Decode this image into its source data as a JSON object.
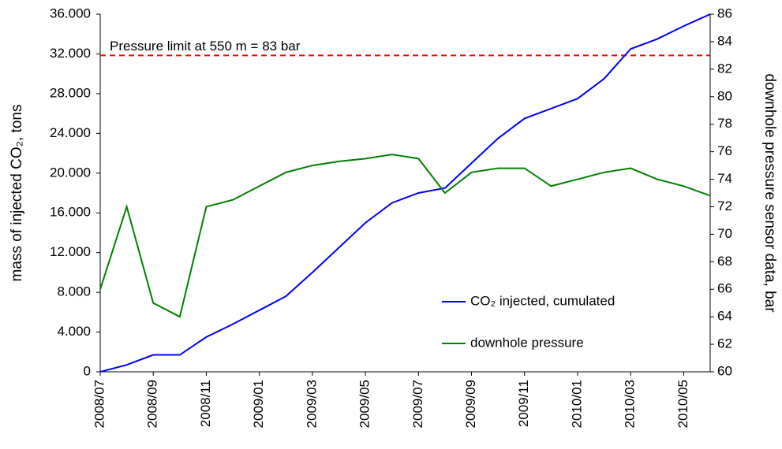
{
  "chart_data": {
    "type": "line",
    "ylabel": "mass of injected CO₂, tons",
    "y2label": "downhole pressure sensor data, bar",
    "x": [
      "2008/07",
      "2008/08",
      "2008/09",
      "2008/10",
      "2008/11",
      "2008/12",
      "2009/01",
      "2009/02",
      "2009/03",
      "2009/04",
      "2009/05",
      "2009/06",
      "2009/07",
      "2009/08",
      "2009/09",
      "2009/10",
      "2009/11",
      "2009/12",
      "2010/01",
      "2010/02",
      "2010/03",
      "2010/04",
      "2010/05",
      "2010/06"
    ],
    "series": [
      {
        "name": "CO₂ injected, cumulated",
        "color": "#0000ff",
        "axis": "y",
        "values": [
          0,
          700,
          1700,
          1700,
          3500,
          4800,
          6200,
          7600,
          10000,
          12500,
          15000,
          17000,
          18000,
          18500,
          21000,
          23500,
          25500,
          26500,
          27500,
          29500,
          32500,
          33500,
          34800,
          36000
        ]
      },
      {
        "name": "downhole pressure",
        "color": "#008000",
        "axis": "y2",
        "values": [
          66,
          72,
          65,
          64,
          72,
          72.5,
          73.5,
          74.5,
          75,
          75.3,
          75.5,
          75.8,
          75.5,
          73,
          74.5,
          74.8,
          74.8,
          73.5,
          74,
          74.5,
          74.8,
          74,
          73.5,
          72.8
        ]
      }
    ],
    "reference_lines": [
      {
        "value": 83,
        "axis": "y2",
        "label": "Pressure limit at 550 m = 83 bar",
        "color": "#ff0000"
      }
    ],
    "xlim": [
      "2008/07",
      "2010/06"
    ],
    "xticks": [
      "2008/07",
      "2008/09",
      "2008/11",
      "2009/01",
      "2009/03",
      "2009/05",
      "2009/07",
      "2009/09",
      "2009/11",
      "2010/01",
      "2010/03",
      "2010/05"
    ],
    "ylim": [
      0,
      36000
    ],
    "yticks": [
      {
        "value": 0,
        "label": "0"
      },
      {
        "value": 4000,
        "label": "4.000"
      },
      {
        "value": 8000,
        "label": "8.000"
      },
      {
        "value": 12000,
        "label": "12.000"
      },
      {
        "value": 16000,
        "label": "16.000"
      },
      {
        "value": 20000,
        "label": "20.000"
      },
      {
        "value": 24000,
        "label": "24.000"
      },
      {
        "value": 28000,
        "label": "28.000"
      },
      {
        "value": 32000,
        "label": "32.000"
      },
      {
        "value": 36000,
        "label": "36.000"
      }
    ],
    "y2lim": [
      60,
      86
    ],
    "y2ticks": [
      60,
      62,
      64,
      66,
      68,
      70,
      72,
      74,
      76,
      78,
      80,
      82,
      84,
      86
    ],
    "legend": "lower right",
    "grid": false
  }
}
